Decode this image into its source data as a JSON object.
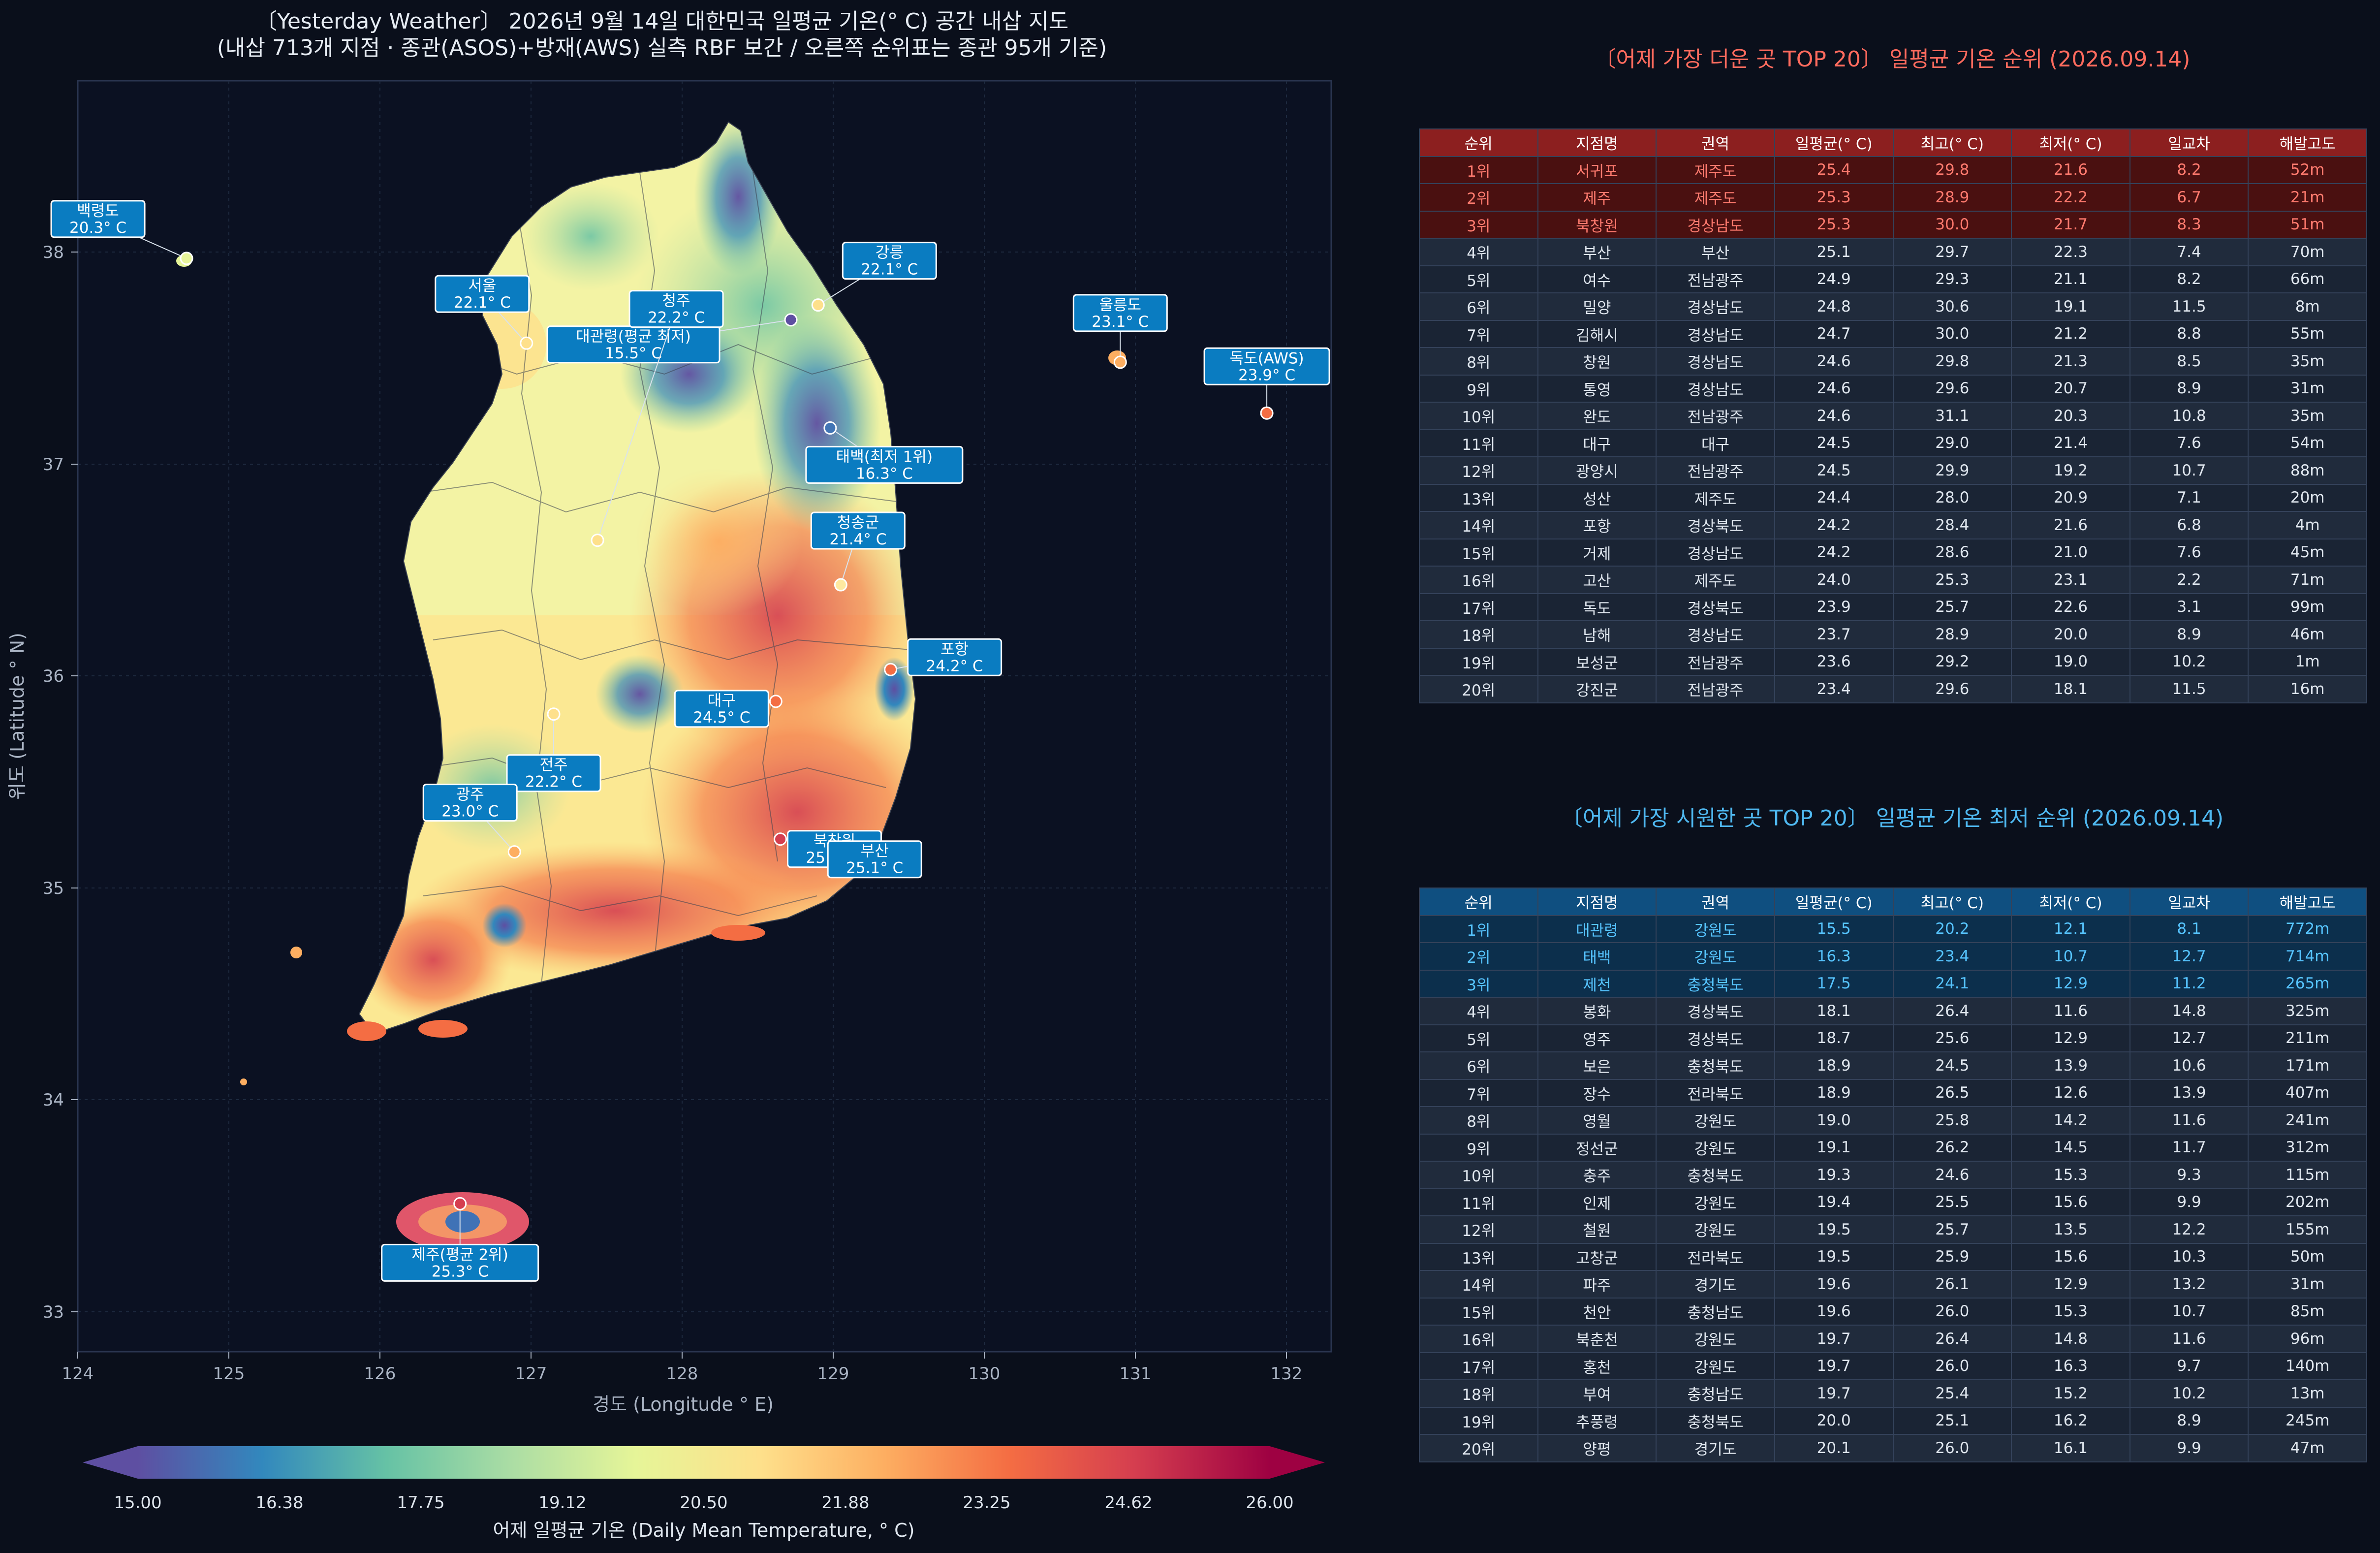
{
  "title_line1": "〔Yesterday Weather〕 2026년 9월 14일 대한민국 일평균 기온(° C) 공간 내삽 지도",
  "title_line2": "(내삽 713개 지점 · 종관(ASOS)+방재(AWS) 실측 RBF 보간 / 오른쪽 순위표는 종관 95개 기준)",
  "axis": {
    "xlabel": "경도 (Longitude ° E)",
    "ylabel": "위도 (Latitude ° N)",
    "xticks": [
      "124",
      "125",
      "126",
      "127",
      "128",
      "129",
      "130",
      "131",
      "132"
    ],
    "yticks": [
      "33",
      "34",
      "35",
      "36",
      "37",
      "38"
    ],
    "xlim": [
      124,
      132.3
    ],
    "ylim": [
      32.82,
      38.88
    ]
  },
  "colorbar": {
    "label": "어제 일평균 기온 (Daily Mean Temperature, ° C)",
    "ticks": [
      "15.00",
      "16.38",
      "17.75",
      "19.12",
      "20.50",
      "21.88",
      "23.25",
      "24.62",
      "26.00"
    ],
    "range": [
      15,
      26
    ],
    "colors": [
      "#5e4fa2",
      "#3288bd",
      "#66c2a5",
      "#abdda4",
      "#e6f598",
      "#fee08b",
      "#fdae61",
      "#f46d43",
      "#d53e4f",
      "#9e0142"
    ]
  },
  "labels": [
    {
      "name": "백령도",
      "temp": "20.3° C",
      "lon": 124.72,
      "lat": 37.97,
      "color": "#e7f49a"
    },
    {
      "name": "서울",
      "temp": "22.1° C",
      "lon": 126.97,
      "lat": 37.57,
      "color": "#fee08b"
    },
    {
      "name": "강릉",
      "temp": "22.1° C",
      "lon": 128.9,
      "lat": 37.75,
      "color": "#fee08b"
    },
    {
      "name": "대관령(평균 최저)",
      "temp": "15.5° C",
      "lon": 128.72,
      "lat": 37.68,
      "color": "#5e4fa2"
    },
    {
      "name": "울릉도",
      "temp": "23.1° C",
      "lon": 130.9,
      "lat": 37.48,
      "color": "#fdae61"
    },
    {
      "name": "독도(AWS)",
      "temp": "23.9° C",
      "lon": 131.87,
      "lat": 37.24,
      "color": "#f46d43"
    },
    {
      "name": "태백(최저 1위)",
      "temp": "16.3° C",
      "lon": 128.98,
      "lat": 37.17,
      "color": "#4275b5"
    },
    {
      "name": "청주",
      "temp": "22.2° C",
      "lon": 127.44,
      "lat": 36.64,
      "color": "#fee08b"
    },
    {
      "name": "청송군",
      "temp": "21.4° C",
      "lon": 129.05,
      "lat": 36.43,
      "color": "#fee9a0"
    },
    {
      "name": "포항",
      "temp": "24.2° C",
      "lon": 129.38,
      "lat": 36.03,
      "color": "#f46d43"
    },
    {
      "name": "대구",
      "temp": "24.5° C",
      "lon": 128.62,
      "lat": 35.88,
      "color": "#f46d43"
    },
    {
      "name": "전주",
      "temp": "22.2° C",
      "lon": 127.15,
      "lat": 35.82,
      "color": "#fee08b"
    },
    {
      "name": "광주",
      "temp": "23.0° C",
      "lon": 126.89,
      "lat": 35.17,
      "color": "#fdae61"
    },
    {
      "name": "북창원",
      "temp": "25.3° C",
      "lon": 128.65,
      "lat": 35.23,
      "color": "#d53e4f"
    },
    {
      "name": "부산",
      "temp": "25.1° C",
      "lon": 129.03,
      "lat": 35.1,
      "color": "#d53e4f"
    },
    {
      "name": "제주(평균 2위)",
      "temp": "25.3° C",
      "lon": 126.53,
      "lat": 33.51,
      "color": "#d53e4f"
    }
  ],
  "hot_table": {
    "title": "〔어제 가장 더운 곳 TOP 20〕 일평균 기온 순위 (2026.09.14)",
    "headers": [
      "순위",
      "지점명",
      "권역",
      "일평균(° C)",
      "최고(° C)",
      "최저(° C)",
      "일교차",
      "해발고도"
    ],
    "rows": [
      [
        "1위",
        "서귀포",
        "제주도",
        "25.4",
        "29.8",
        "21.6",
        "8.2",
        "52m"
      ],
      [
        "2위",
        "제주",
        "제주도",
        "25.3",
        "28.9",
        "22.2",
        "6.7",
        "21m"
      ],
      [
        "3위",
        "북창원",
        "경상남도",
        "25.3",
        "30.0",
        "21.7",
        "8.3",
        "51m"
      ],
      [
        "4위",
        "부산",
        "부산",
        "25.1",
        "29.7",
        "22.3",
        "7.4",
        "70m"
      ],
      [
        "5위",
        "여수",
        "전남광주",
        "24.9",
        "29.3",
        "21.1",
        "8.2",
        "66m"
      ],
      [
        "6위",
        "밀양",
        "경상남도",
        "24.8",
        "30.6",
        "19.1",
        "11.5",
        "8m"
      ],
      [
        "7위",
        "김해시",
        "경상남도",
        "24.7",
        "30.0",
        "21.2",
        "8.8",
        "55m"
      ],
      [
        "8위",
        "창원",
        "경상남도",
        "24.6",
        "29.8",
        "21.3",
        "8.5",
        "35m"
      ],
      [
        "9위",
        "통영",
        "경상남도",
        "24.6",
        "29.6",
        "20.7",
        "8.9",
        "31m"
      ],
      [
        "10위",
        "완도",
        "전남광주",
        "24.6",
        "31.1",
        "20.3",
        "10.8",
        "35m"
      ],
      [
        "11위",
        "대구",
        "대구",
        "24.5",
        "29.0",
        "21.4",
        "7.6",
        "54m"
      ],
      [
        "12위",
        "광양시",
        "전남광주",
        "24.5",
        "29.9",
        "19.2",
        "10.7",
        "88m"
      ],
      [
        "13위",
        "성산",
        "제주도",
        "24.4",
        "28.0",
        "20.9",
        "7.1",
        "20m"
      ],
      [
        "14위",
        "포항",
        "경상북도",
        "24.2",
        "28.4",
        "21.6",
        "6.8",
        "4m"
      ],
      [
        "15위",
        "거제",
        "경상남도",
        "24.2",
        "28.6",
        "21.0",
        "7.6",
        "45m"
      ],
      [
        "16위",
        "고산",
        "제주도",
        "24.0",
        "25.3",
        "23.1",
        "2.2",
        "71m"
      ],
      [
        "17위",
        "독도",
        "경상북도",
        "23.9",
        "25.7",
        "22.6",
        "3.1",
        "99m"
      ],
      [
        "18위",
        "남해",
        "경상남도",
        "23.7",
        "28.9",
        "20.0",
        "8.9",
        "46m"
      ],
      [
        "19위",
        "보성군",
        "전남광주",
        "23.6",
        "29.2",
        "19.0",
        "10.2",
        "1m"
      ],
      [
        "20위",
        "강진군",
        "전남광주",
        "23.4",
        "29.6",
        "18.1",
        "11.5",
        "16m"
      ]
    ]
  },
  "cold_table": {
    "title": "〔어제 가장 시원한 곳 TOP 20〕 일평균 기온 최저 순위 (2026.09.14)",
    "headers": [
      "순위",
      "지점명",
      "권역",
      "일평균(° C)",
      "최고(° C)",
      "최저(° C)",
      "일교차",
      "해발고도"
    ],
    "rows": [
      [
        "1위",
        "대관령",
        "강원도",
        "15.5",
        "20.2",
        "12.1",
        "8.1",
        "772m"
      ],
      [
        "2위",
        "태백",
        "강원도",
        "16.3",
        "23.4",
        "10.7",
        "12.7",
        "714m"
      ],
      [
        "3위",
        "제천",
        "충청북도",
        "17.5",
        "24.1",
        "12.9",
        "11.2",
        "265m"
      ],
      [
        "4위",
        "봉화",
        "경상북도",
        "18.1",
        "26.4",
        "11.6",
        "14.8",
        "325m"
      ],
      [
        "5위",
        "영주",
        "경상북도",
        "18.7",
        "25.6",
        "12.9",
        "12.7",
        "211m"
      ],
      [
        "6위",
        "보은",
        "충청북도",
        "18.9",
        "24.5",
        "13.9",
        "10.6",
        "171m"
      ],
      [
        "7위",
        "장수",
        "전라북도",
        "18.9",
        "26.5",
        "12.6",
        "13.9",
        "407m"
      ],
      [
        "8위",
        "영월",
        "강원도",
        "19.0",
        "25.8",
        "14.2",
        "11.6",
        "241m"
      ],
      [
        "9위",
        "정선군",
        "강원도",
        "19.1",
        "26.2",
        "14.5",
        "11.7",
        "312m"
      ],
      [
        "10위",
        "충주",
        "충청북도",
        "19.3",
        "24.6",
        "15.3",
        "9.3",
        "115m"
      ],
      [
        "11위",
        "인제",
        "강원도",
        "19.4",
        "25.5",
        "15.6",
        "9.9",
        "202m"
      ],
      [
        "12위",
        "철원",
        "강원도",
        "19.5",
        "25.7",
        "13.5",
        "12.2",
        "155m"
      ],
      [
        "13위",
        "고창군",
        "전라북도",
        "19.5",
        "25.9",
        "15.6",
        "10.3",
        "50m"
      ],
      [
        "14위",
        "파주",
        "경기도",
        "19.6",
        "26.1",
        "12.9",
        "13.2",
        "31m"
      ],
      [
        "15위",
        "천안",
        "충청남도",
        "19.6",
        "26.0",
        "15.3",
        "10.7",
        "85m"
      ],
      [
        "16위",
        "북춘천",
        "강원도",
        "19.7",
        "26.4",
        "14.8",
        "11.6",
        "96m"
      ],
      [
        "17위",
        "홍천",
        "강원도",
        "19.7",
        "26.0",
        "16.3",
        "9.7",
        "140m"
      ],
      [
        "18위",
        "부여",
        "충청남도",
        "19.7",
        "25.4",
        "15.2",
        "10.2",
        "13m"
      ],
      [
        "19위",
        "추풍령",
        "충청북도",
        "20.0",
        "25.1",
        "16.2",
        "8.9",
        "245m"
      ],
      [
        "20위",
        "양평",
        "경기도",
        "20.1",
        "26.0",
        "16.1",
        "9.9",
        "47m"
      ]
    ]
  },
  "colors": {
    "hot_accent": "#ff6b5e",
    "cold_accent": "#4fb8f0",
    "label_box": "#0a7cc1"
  }
}
